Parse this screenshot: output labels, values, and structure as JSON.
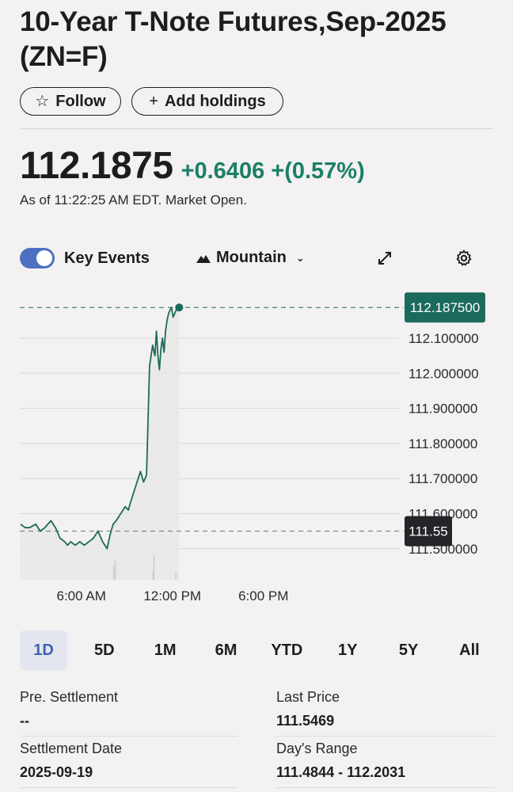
{
  "header": {
    "title": "10-Year T-Note Futures,Sep-2025 (ZN=F)",
    "follow_label": "Follow",
    "add_holdings_label": "Add holdings"
  },
  "quote": {
    "price": "112.1875",
    "change": "+0.6406 +(0.57%)",
    "as_of": "As of 11:22:25 AM EDT. Market Open.",
    "change_color": "#1b7f67"
  },
  "toolbar": {
    "key_events_label": "Key Events",
    "key_events_enabled": true,
    "chart_type_label": "Mountain"
  },
  "chart_data": {
    "type": "area",
    "title": "",
    "ylim": [
      111.49,
      112.2
    ],
    "y_ticks": [
      "112.100000",
      "112.000000",
      "111.900000",
      "111.800000",
      "111.700000",
      "111.600000",
      "111.500000"
    ],
    "y_tick_values": [
      112.1,
      112.0,
      111.9,
      111.8,
      111.7,
      111.6,
      111.5
    ],
    "x_ticks": [
      "6:00 AM",
      "12:00 PM",
      "6:00 PM"
    ],
    "x_tick_hours": [
      6,
      12,
      18
    ],
    "x_range_hours": [
      2,
      24
    ],
    "current_price_label": "112.187500",
    "current_price": 112.1875,
    "prev_close_label": "111.55",
    "prev_close": 111.55,
    "series": [
      {
        "x": [
          2.0,
          2.3,
          2.6,
          3.0,
          3.3,
          3.6,
          4.0,
          4.3,
          4.6,
          4.9,
          5.1,
          5.3,
          5.6,
          5.9,
          6.2,
          6.5,
          6.8,
          7.1,
          7.4,
          7.7,
          7.9,
          8.1,
          8.3,
          8.6,
          8.9,
          9.1,
          9.3,
          9.6,
          9.9,
          10.1,
          10.3,
          10.5,
          10.7,
          10.85,
          10.95,
          11.05,
          11.15,
          11.25,
          11.35,
          11.45,
          11.55,
          11.65,
          11.75,
          11.85,
          11.95,
          12.05,
          12.15,
          12.25,
          12.35,
          12.45
        ],
        "y": [
          111.57,
          111.56,
          111.56,
          111.57,
          111.55,
          111.56,
          111.58,
          111.56,
          111.53,
          111.52,
          111.51,
          111.52,
          111.51,
          111.52,
          111.51,
          111.52,
          111.53,
          111.55,
          111.52,
          111.5,
          111.54,
          111.57,
          111.58,
          111.6,
          111.62,
          111.61,
          111.64,
          111.68,
          111.72,
          111.69,
          111.71,
          112.02,
          112.08,
          112.05,
          112.12,
          112.05,
          112.01,
          112.07,
          112.1,
          112.06,
          112.12,
          112.15,
          112.17,
          112.18,
          112.1875,
          112.16,
          112.17,
          112.18,
          112.185,
          112.1875
        ]
      }
    ],
    "volume_bar_hours": [
      8.1,
      8.2,
      10.7,
      10.75,
      12.2
    ],
    "volume_bar_fraction": [
      0.5,
      0.7,
      0.35,
      0.9,
      0.3
    ],
    "colors": {
      "line": "#1c6b5b",
      "fill": "#e7e9e8",
      "label_bg": "#1b6b5c",
      "prev_label_bg": "#232528"
    }
  },
  "ranges": [
    "1D",
    "5D",
    "1M",
    "6M",
    "YTD",
    "1Y",
    "5Y",
    "All"
  ],
  "active_range": "1D",
  "stats": [
    {
      "label": "Pre. Settlement",
      "value": "--"
    },
    {
      "label": "Last Price",
      "value": "111.5469"
    },
    {
      "label": "Settlement Date",
      "value": "2025-09-19"
    },
    {
      "label": "Day's Range",
      "value": "111.4844 - 112.2031"
    }
  ]
}
